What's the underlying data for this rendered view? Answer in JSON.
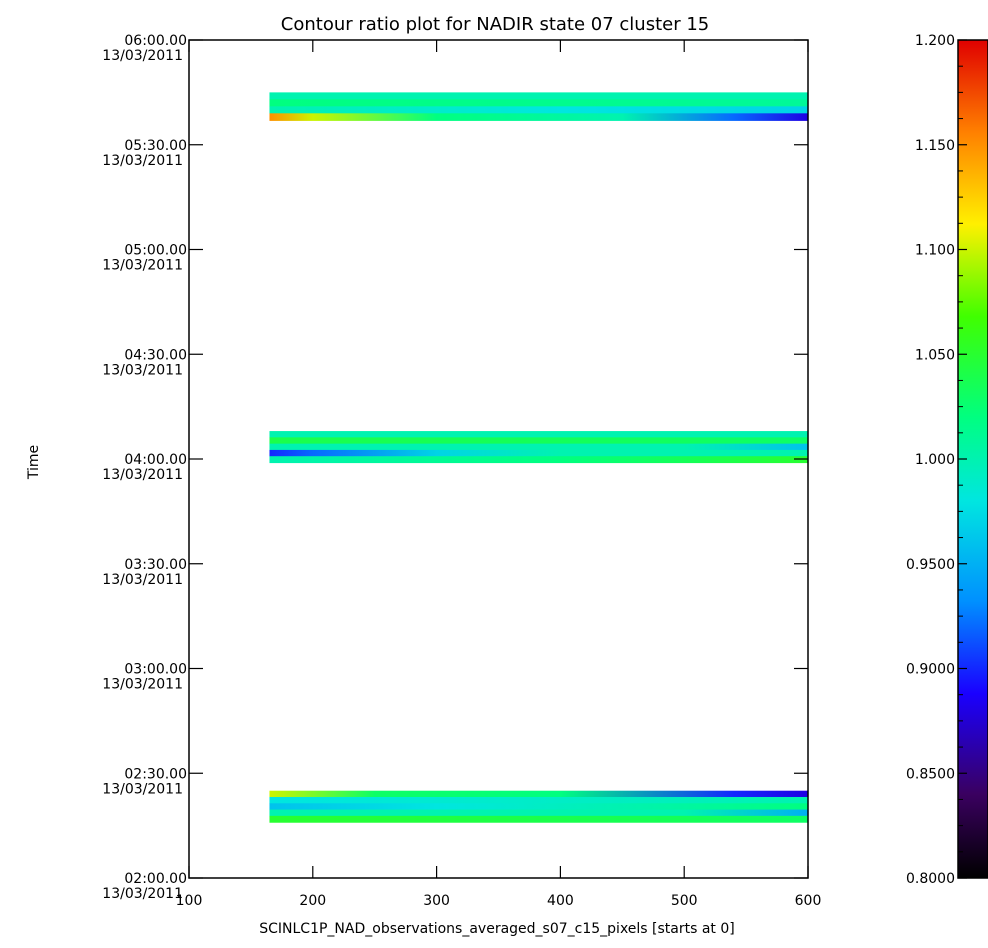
{
  "chart_data": {
    "type": "heatmap",
    "title": "Contour ratio plot for NADIR state 07 cluster 15",
    "xlabel": "SCINLC1P_NAD_observations_averaged_s07_c15_pixels [starts at 0]",
    "ylabel": "Time",
    "xlim": [
      100,
      600
    ],
    "x_ticks": [
      "100",
      "200",
      "300",
      "400",
      "500",
      "600"
    ],
    "y_ticks": [
      {
        "time": "02:00.00",
        "date": "13/03/2011"
      },
      {
        "time": "02:30.00",
        "date": "13/03/2011"
      },
      {
        "time": "03:00.00",
        "date": "13/03/2011"
      },
      {
        "time": "03:30.00",
        "date": "13/03/2011"
      },
      {
        "time": "04:00.00",
        "date": "13/03/2011"
      },
      {
        "time": "04:30.00",
        "date": "13/03/2011"
      },
      {
        "time": "05:00.00",
        "date": "13/03/2011"
      },
      {
        "time": "05:30.00",
        "date": "13/03/2011"
      },
      {
        "time": "06:00.00",
        "date": "13/03/2011"
      }
    ],
    "colorbar": {
      "range": [
        0.8,
        1.2
      ],
      "tick_labels": [
        "0.8000",
        "0.8500",
        "0.9000",
        "0.9500",
        "1.000",
        "1.050",
        "1.100",
        "1.150",
        "1.200"
      ],
      "colormap": "rainbow"
    },
    "blocks": [
      {
        "x_start": 165,
        "x_end": 600,
        "t_start": "05:37",
        "t_end": "05:45",
        "rows": [
          {
            "color_stops": [
              [
                165,
                1.0
              ],
              [
                600,
                1.0
              ]
            ]
          },
          {
            "color_stops": [
              [
                165,
                1.02
              ],
              [
                600,
                1.01
              ]
            ]
          },
          {
            "color_stops": [
              [
                165,
                1.0
              ],
              [
                400,
                0.98
              ],
              [
                600,
                0.97
              ]
            ]
          },
          {
            "color_stops": [
              [
                165,
                1.15
              ],
              [
                200,
                1.1
              ],
              [
                300,
                1.02
              ],
              [
                450,
                1.0
              ],
              [
                540,
                0.92
              ],
              [
                600,
                0.88
              ]
            ]
          }
        ]
      },
      {
        "x_start": 165,
        "x_end": 600,
        "t_start": "03:59",
        "t_end": "04:08",
        "rows": [
          {
            "color_stops": [
              [
                165,
                1.0
              ],
              [
                600,
                1.0
              ]
            ]
          },
          {
            "color_stops": [
              [
                165,
                1.04
              ],
              [
                600,
                1.03
              ]
            ]
          },
          {
            "color_stops": [
              [
                165,
                1.0
              ],
              [
                500,
                1.0
              ],
              [
                600,
                0.96
              ]
            ]
          },
          {
            "color_stops": [
              [
                165,
                0.9
              ],
              [
                200,
                0.92
              ],
              [
                300,
                0.97
              ],
              [
                400,
                1.0
              ],
              [
                600,
                1.0
              ]
            ]
          },
          {
            "color_stops": [
              [
                165,
                1.0
              ],
              [
                400,
                1.02
              ],
              [
                600,
                1.05
              ]
            ]
          }
        ]
      },
      {
        "x_start": 165,
        "x_end": 600,
        "t_start": "02:16",
        "t_end": "02:25",
        "rows": [
          {
            "color_stops": [
              [
                165,
                1.1
              ],
              [
                250,
                1.03
              ],
              [
                400,
                1.02
              ],
              [
                540,
                0.9
              ],
              [
                600,
                0.88
              ]
            ]
          },
          {
            "color_stops": [
              [
                165,
                0.98
              ],
              [
                600,
                1.0
              ]
            ]
          },
          {
            "color_stops": [
              [
                165,
                0.96
              ],
              [
                300,
                0.98
              ],
              [
                600,
                1.02
              ]
            ]
          },
          {
            "color_stops": [
              [
                165,
                1.0
              ],
              [
                500,
                1.0
              ],
              [
                600,
                0.95
              ]
            ]
          },
          {
            "color_stops": [
              [
                165,
                1.05
              ],
              [
                600,
                1.03
              ]
            ]
          }
        ]
      }
    ]
  }
}
